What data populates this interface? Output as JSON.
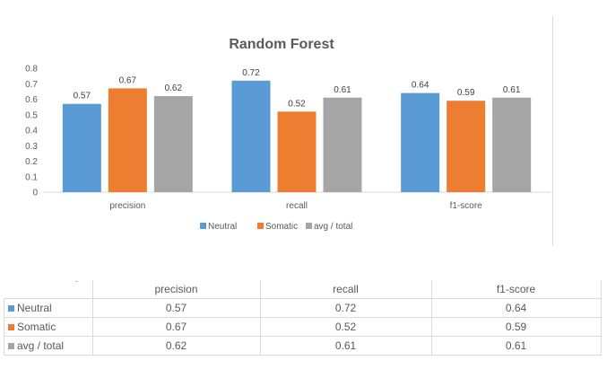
{
  "colors": {
    "Neutral": "#5b9bd5",
    "Somatic": "#ed7d31",
    "avg / total": "#a5a5a5"
  },
  "chart_data": {
    "type": "bar",
    "title": "Random Forest",
    "categories": [
      "precision",
      "recall",
      "f1-score"
    ],
    "series": [
      {
        "name": "Neutral",
        "values": [
          0.57,
          0.72,
          0.64
        ]
      },
      {
        "name": "Somatic",
        "values": [
          0.67,
          0.52,
          0.59
        ]
      },
      {
        "name": "avg / total",
        "values": [
          0.62,
          0.61,
          0.61
        ]
      }
    ],
    "yticks": [
      "0",
      "0.1",
      "0.2",
      "0.3",
      "0.4",
      "0.5",
      "0.6",
      "0.7",
      "0.8"
    ],
    "ylim": [
      0,
      0.8
    ],
    "data_labels": [
      [
        "0.57",
        "0.72",
        "0.64"
      ],
      [
        "0.67",
        "0.52",
        "0.59"
      ],
      [
        "0.62",
        "0.61",
        "0.61"
      ]
    ],
    "legend_position": "bottom",
    "grid": false
  },
  "table": {
    "corner": "-",
    "headers": [
      "precision",
      "recall",
      "f1-score"
    ],
    "rows": [
      {
        "label": "Neutral",
        "values": [
          "0.57",
          "0.72",
          "0.64"
        ]
      },
      {
        "label": "Somatic",
        "values": [
          "0.67",
          "0.52",
          "0.59"
        ]
      },
      {
        "label": "avg / total",
        "values": [
          "0.62",
          "0.61",
          "0.61"
        ]
      }
    ]
  }
}
